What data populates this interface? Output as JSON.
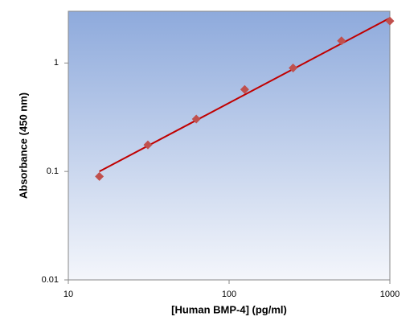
{
  "chart_data": {
    "type": "scatter",
    "x_label": "[Human BMP-4] (pg/ml)",
    "y_label": "Absorbance (450 nm)",
    "x": [
      15.6,
      31.25,
      62.5,
      125,
      250,
      500,
      1000
    ],
    "values": [
      0.09,
      0.176,
      0.304,
      0.57,
      0.9,
      1.6,
      2.44
    ],
    "color": "#c0504d",
    "fit_line": {
      "x": [
        15.6,
        1000
      ],
      "values": [
        0.1,
        2.6
      ],
      "color": "#c00000"
    },
    "xlim": [
      10,
      1000
    ],
    "ylim": [
      0.01,
      3
    ],
    "xticks": [
      10,
      100,
      1000
    ],
    "yticks": [
      0.01,
      0.1,
      1
    ],
    "xscale": "log",
    "yscale": "log"
  }
}
